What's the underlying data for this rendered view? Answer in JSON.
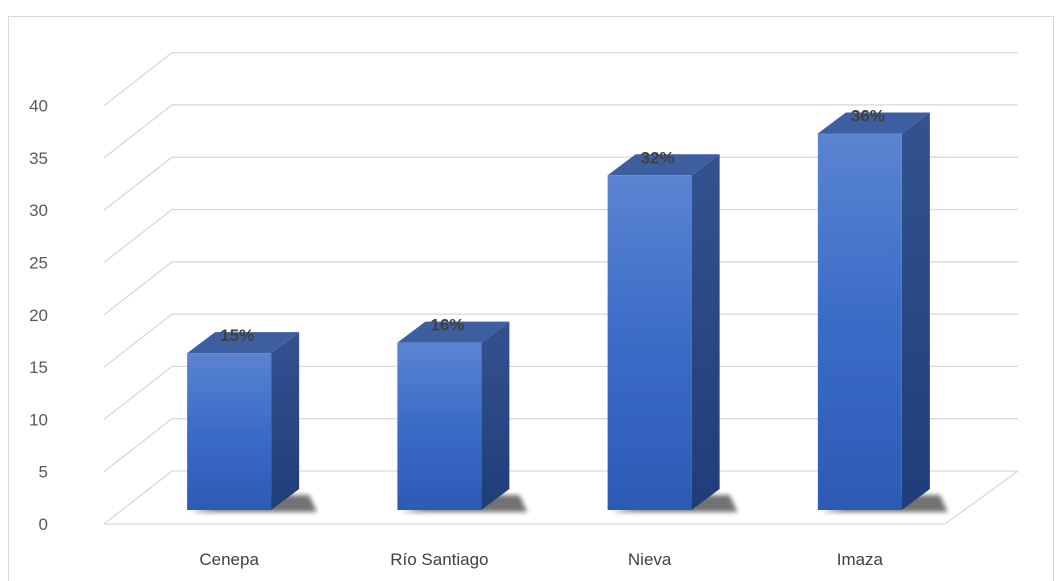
{
  "chart_data": {
    "type": "bar",
    "style": "3d-column",
    "categories": [
      "Cenepa",
      "Río Santiago",
      "Nieva",
      "Imaza"
    ],
    "values": [
      15,
      16,
      32,
      36
    ],
    "data_labels": [
      "15%",
      "16%",
      "32%",
      "36%"
    ],
    "yticks": [
      "0",
      "5",
      "10",
      "15",
      "20",
      "25",
      "30",
      "35",
      "40"
    ],
    "ylim": [
      0,
      40
    ],
    "grid": true,
    "legend": "none",
    "colors": {
      "bar_front": "#4472c4",
      "bar_top": "#3e5f9f",
      "bar_side": "#2b4a86",
      "grid": "#d9d9d9"
    }
  }
}
